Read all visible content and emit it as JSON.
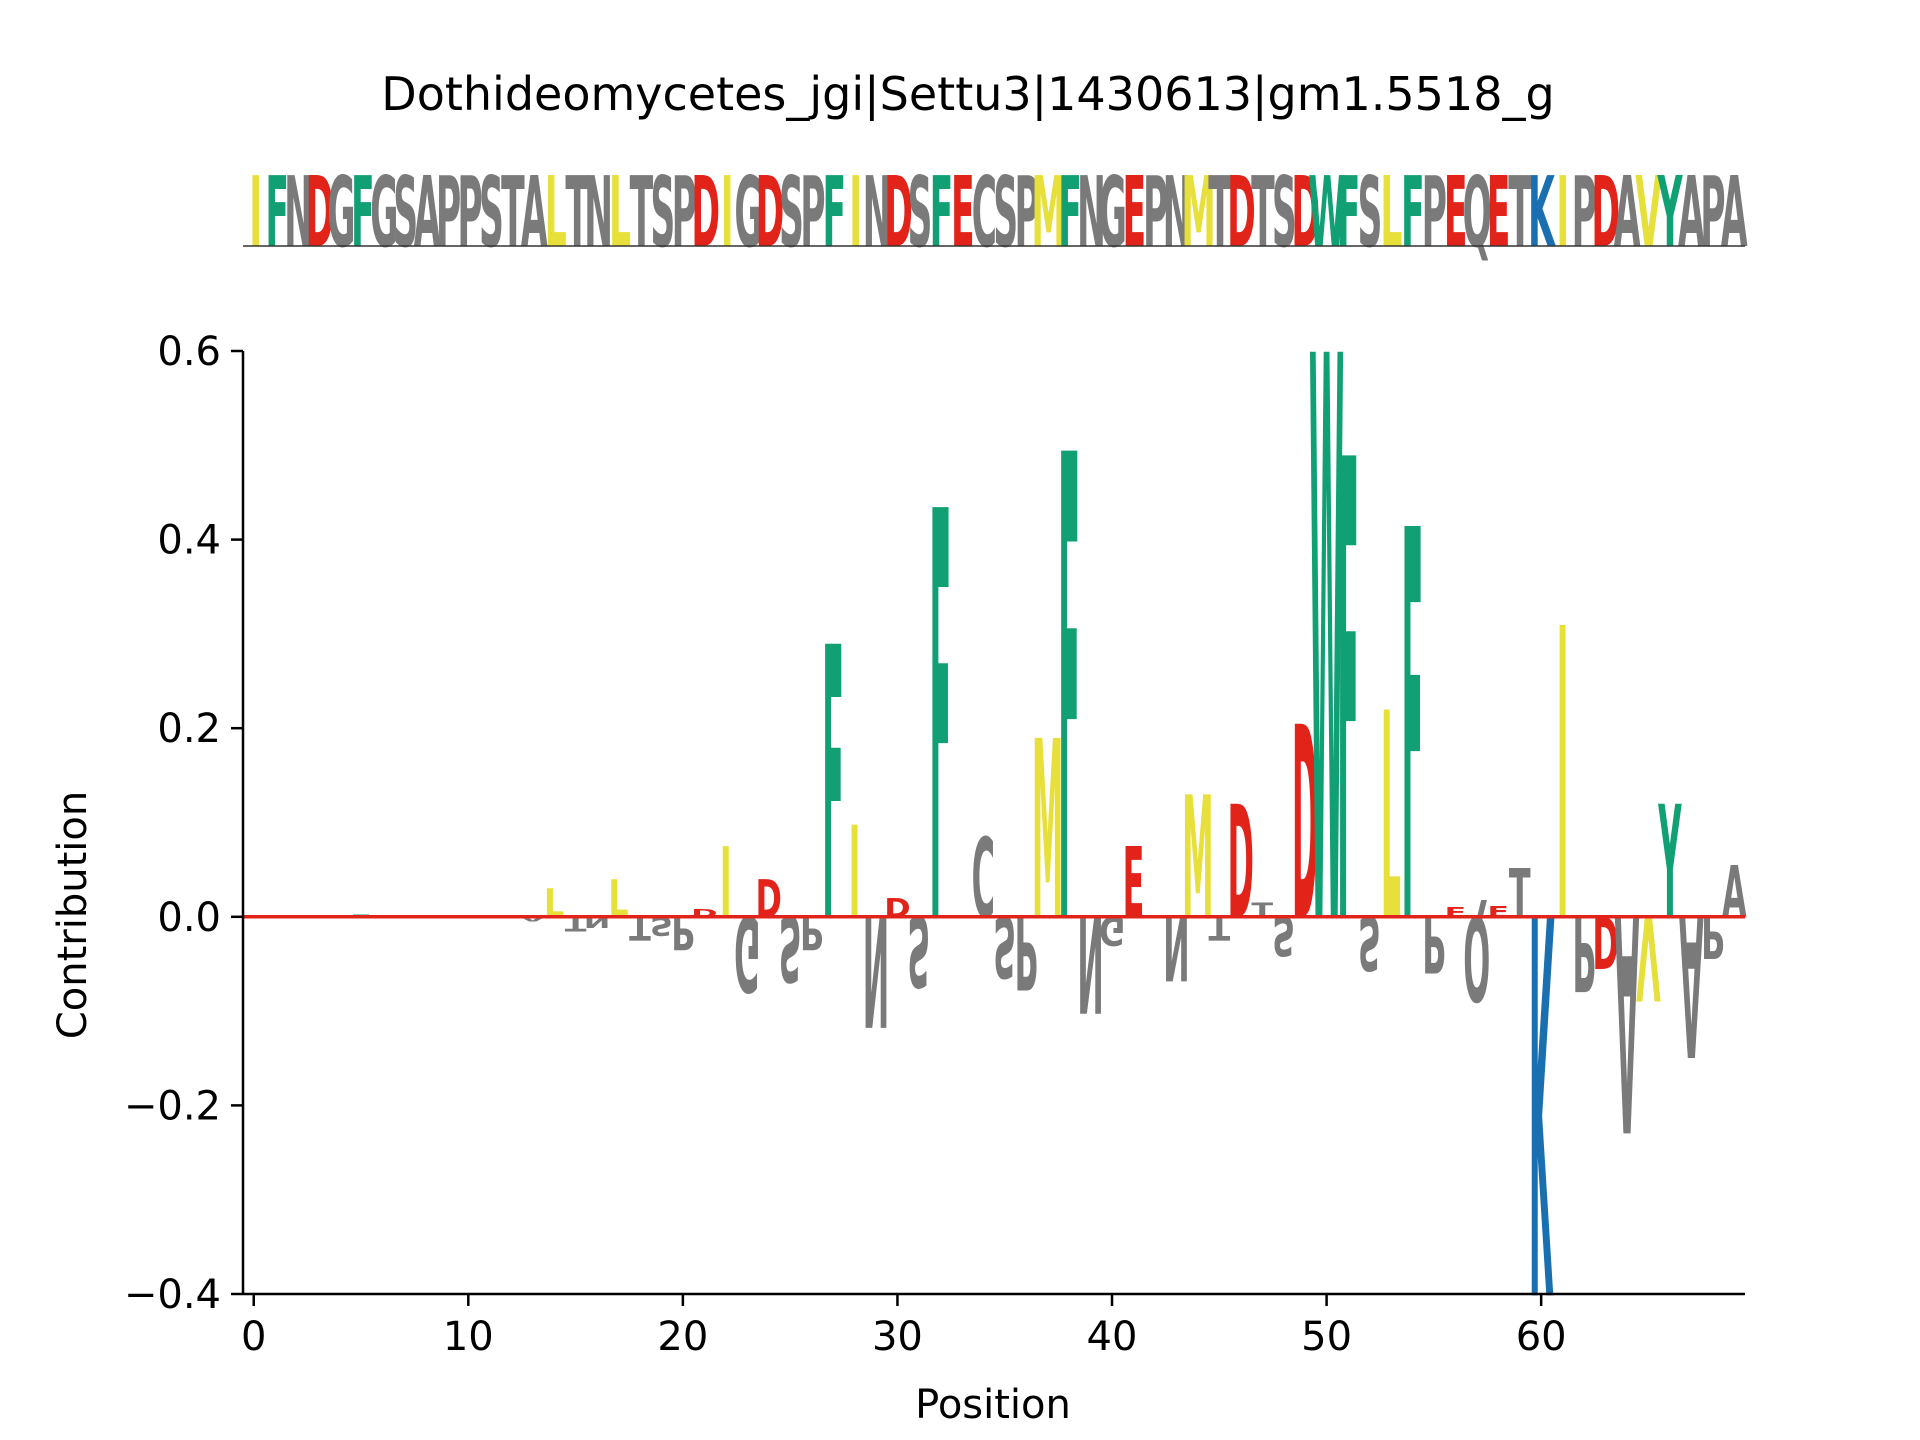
{
  "chart_data": {
    "type": "sequence-logo",
    "title": "Dothideomycetes_jgi|Settu3|1430613|gm1.5518_g",
    "sequence": "IFNDGFGSAPPSTALTNLTSPDIGDSPFINDSFECSPMFNGEPNMTDTSDWFSLFPEQETKIPDAVYAPA",
    "xlabel": "Position",
    "ylabel": "Contribution",
    "xlim": [
      -0.5,
      69.5
    ],
    "ylim": [
      -0.4,
      0.6
    ],
    "xticks": [
      0,
      10,
      20,
      30,
      40,
      50,
      60
    ],
    "yticks": [
      -0.4,
      -0.2,
      0.0,
      0.2,
      0.4,
      0.6
    ],
    "ytick_labels": [
      "−0.4",
      "−0.2",
      "0.0",
      "0.2",
      "0.4",
      "0.6"
    ],
    "baseline": 0.0,
    "grid": false,
    "colors": {
      "hydrophobic": "#e8e03a",
      "aromatic": "#10a074",
      "acidic": "#e2231a",
      "basic": "#1a6fb0",
      "other": "#7a7a7a",
      "baseline": "#e2231a",
      "axis": "#000000"
    },
    "residue_classes": {
      "hydrophobic": [
        "I",
        "L",
        "M",
        "V",
        "A_hydrophobic"
      ],
      "aromatic": [
        "F",
        "W",
        "Y"
      ],
      "acidic": [
        "D",
        "E"
      ],
      "basic": [
        "K",
        "R",
        "H"
      ]
    },
    "contributions": [
      {
        "pos": 0,
        "letter": "I",
        "value": 0.0
      },
      {
        "pos": 1,
        "letter": "F",
        "value": 0.0
      },
      {
        "pos": 2,
        "letter": "N",
        "value": 0.0
      },
      {
        "pos": 3,
        "letter": "D",
        "value": 0.0
      },
      {
        "pos": 4,
        "letter": "G",
        "value": 0.0
      },
      {
        "pos": 5,
        "letter": "F",
        "value": 0.003
      },
      {
        "pos": 6,
        "letter": "G",
        "value": 0.0
      },
      {
        "pos": 7,
        "letter": "S",
        "value": 0.0
      },
      {
        "pos": 8,
        "letter": "A",
        "value": 0.0
      },
      {
        "pos": 9,
        "letter": "P",
        "value": 0.0
      },
      {
        "pos": 10,
        "letter": "P",
        "value": 0.0
      },
      {
        "pos": 11,
        "letter": "S",
        "value": 0.0
      },
      {
        "pos": 12,
        "letter": "T",
        "value": 0.0
      },
      {
        "pos": 13,
        "letter": "A",
        "value": -0.005
      },
      {
        "pos": 14,
        "letter": "L",
        "value": 0.03
      },
      {
        "pos": 15,
        "letter": "T",
        "value": -0.015
      },
      {
        "pos": 16,
        "letter": "N",
        "value": -0.012
      },
      {
        "pos": 17,
        "letter": "L",
        "value": 0.04
      },
      {
        "pos": 18,
        "letter": "T",
        "value": -0.025
      },
      {
        "pos": 19,
        "letter": "S",
        "value": -0.02
      },
      {
        "pos": 20,
        "letter": "P",
        "value": -0.035
      },
      {
        "pos": 21,
        "letter": "D",
        "value": 0.008
      },
      {
        "pos": 22,
        "letter": "I",
        "value": 0.075
      },
      {
        "pos": 23,
        "letter": "G",
        "value": -0.08
      },
      {
        "pos": 24,
        "letter": "D",
        "value": 0.04
      },
      {
        "pos": 25,
        "letter": "S",
        "value": -0.07
      },
      {
        "pos": 26,
        "letter": "P",
        "value": -0.035
      },
      {
        "pos": 27,
        "letter": "F",
        "value": 0.29
      },
      {
        "pos": 28,
        "letter": "I",
        "value": 0.098
      },
      {
        "pos": 29,
        "letter": "N",
        "value": -0.118
      },
      {
        "pos": 30,
        "letter": "D",
        "value": 0.02
      },
      {
        "pos": 31,
        "letter": "S",
        "value": -0.075
      },
      {
        "pos": 32,
        "letter": "F",
        "value": 0.435
      },
      {
        "pos": 33,
        "letter": "E",
        "value": 0.0
      },
      {
        "pos": 34,
        "letter": "C",
        "value": 0.085
      },
      {
        "pos": 35,
        "letter": "S",
        "value": -0.065
      },
      {
        "pos": 36,
        "letter": "P",
        "value": -0.078
      },
      {
        "pos": 37,
        "letter": "M",
        "value": 0.19
      },
      {
        "pos": 38,
        "letter": "F",
        "value": 0.495
      },
      {
        "pos": 39,
        "letter": "N",
        "value": -0.103
      },
      {
        "pos": 40,
        "letter": "G",
        "value": -0.03
      },
      {
        "pos": 41,
        "letter": "E",
        "value": 0.075
      },
      {
        "pos": 42,
        "letter": "P",
        "value": 0.0
      },
      {
        "pos": 43,
        "letter": "N",
        "value": -0.068
      },
      {
        "pos": 44,
        "letter": "M",
        "value": 0.13
      },
      {
        "pos": 45,
        "letter": "T",
        "value": -0.025
      },
      {
        "pos": 46,
        "letter": "D",
        "value": 0.12
      },
      {
        "pos": 47,
        "letter": "T",
        "value": 0.015
      },
      {
        "pos": 48,
        "letter": "S",
        "value": -0.042
      },
      {
        "pos": 49,
        "letter": "D",
        "value": 0.205
      },
      {
        "pos": 50,
        "letter": "W",
        "value": 0.6
      },
      {
        "pos": 51,
        "letter": "F",
        "value": 0.49
      },
      {
        "pos": 52,
        "letter": "S",
        "value": -0.057
      },
      {
        "pos": 53,
        "letter": "L",
        "value": 0.22
      },
      {
        "pos": 54,
        "letter": "F",
        "value": 0.415
      },
      {
        "pos": 55,
        "letter": "P",
        "value": -0.06
      },
      {
        "pos": 56,
        "letter": "E",
        "value": 0.01
      },
      {
        "pos": 57,
        "letter": "Q",
        "value": -0.09
      },
      {
        "pos": 58,
        "letter": "E",
        "value": 0.012
      },
      {
        "pos": 59,
        "letter": "T",
        "value": 0.052
      },
      {
        "pos": 60,
        "letter": "K",
        "value": -0.402
      },
      {
        "pos": 61,
        "letter": "I",
        "value": 0.31
      },
      {
        "pos": 62,
        "letter": "P",
        "value": -0.08
      },
      {
        "pos": 63,
        "letter": "D",
        "value": -0.055
      },
      {
        "pos": 64,
        "letter": "A",
        "value": -0.23
      },
      {
        "pos": 65,
        "letter": "V",
        "value": -0.09
      },
      {
        "pos": 66,
        "letter": "Y",
        "value": 0.12
      },
      {
        "pos": 67,
        "letter": "A",
        "value": -0.15
      },
      {
        "pos": 68,
        "letter": "P",
        "value": -0.045
      },
      {
        "pos": 69,
        "letter": "A",
        "value": 0.055
      }
    ]
  }
}
